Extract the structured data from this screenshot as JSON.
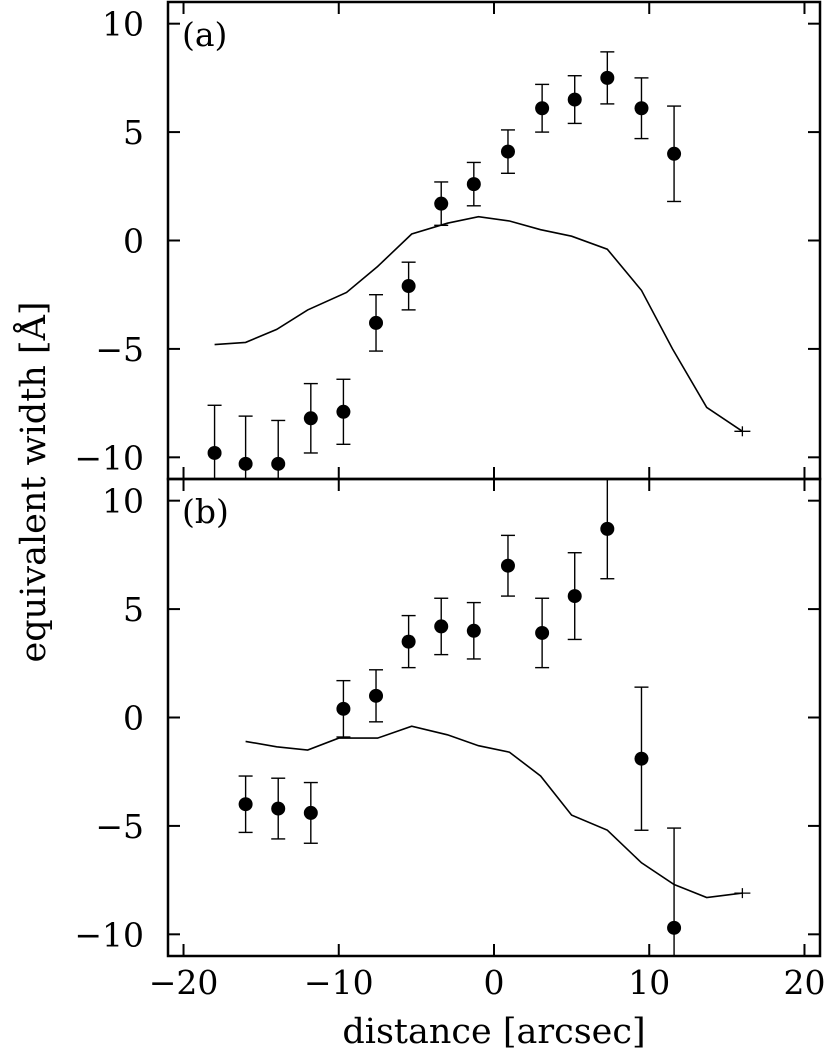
{
  "chart_data": {
    "type": "scatter",
    "xlabel": "distance [arcsec]",
    "ylabel": "equivalent width [Å]",
    "xlim": [
      -21,
      21
    ],
    "x_ticks": [
      -20,
      -10,
      0,
      10,
      20
    ],
    "x_tick_labels": [
      "−20",
      "−10",
      "0",
      "10",
      "20"
    ],
    "panels": [
      {
        "label": "(a)",
        "ylim": [
          -11,
          11
        ],
        "y_ticks": [
          -10,
          -5,
          0,
          5,
          10
        ],
        "y_tick_labels": [
          "−10",
          "−5",
          "0",
          "5",
          "10"
        ],
        "points": [
          {
            "x": -18.0,
            "y": -9.8,
            "err": 2.2
          },
          {
            "x": -16.0,
            "y": -10.3,
            "err": 2.2
          },
          {
            "x": -13.9,
            "y": -10.3,
            "err": 2.0
          },
          {
            "x": -11.8,
            "y": -8.2,
            "err": 1.6
          },
          {
            "x": -9.7,
            "y": -7.9,
            "err": 1.5
          },
          {
            "x": -7.6,
            "y": -3.8,
            "err": 1.3
          },
          {
            "x": -5.5,
            "y": -2.1,
            "err": 1.1
          },
          {
            "x": -3.4,
            "y": 1.7,
            "err": 1.0
          },
          {
            "x": -1.3,
            "y": 2.6,
            "err": 1.0
          },
          {
            "x": 0.9,
            "y": 4.1,
            "err": 1.0
          },
          {
            "x": 3.1,
            "y": 6.1,
            "err": 1.1
          },
          {
            "x": 5.2,
            "y": 6.5,
            "err": 1.1
          },
          {
            "x": 7.3,
            "y": 7.5,
            "err": 1.2
          },
          {
            "x": 9.5,
            "y": 6.1,
            "err": 1.4
          },
          {
            "x": 11.6,
            "y": 4.0,
            "err": 2.2
          }
        ],
        "model_line": {
          "x": [
            -18.0,
            -16.0,
            -14.0,
            -12.0,
            -9.5,
            -7.5,
            -5.3,
            -3.0,
            -1.0,
            1.0,
            3.0,
            5.0,
            7.3,
            9.5,
            11.5,
            13.7,
            16.0
          ],
          "y": [
            -4.8,
            -4.7,
            -4.1,
            -3.2,
            -2.4,
            -1.2,
            0.3,
            0.8,
            1.1,
            0.9,
            0.5,
            0.2,
            -0.4,
            -2.3,
            -5.0,
            -7.7,
            -8.8
          ]
        }
      },
      {
        "label": "(b)",
        "ylim": [
          -11,
          11
        ],
        "y_ticks": [
          -10,
          -5,
          0,
          5,
          10
        ],
        "y_tick_labels": [
          "−10",
          "−5",
          "0",
          "5",
          "10"
        ],
        "points": [
          {
            "x": -16.0,
            "y": -4.0,
            "err": 1.3
          },
          {
            "x": -13.9,
            "y": -4.2,
            "err": 1.4
          },
          {
            "x": -11.8,
            "y": -4.4,
            "err": 1.4
          },
          {
            "x": -9.7,
            "y": 0.4,
            "err": 1.3
          },
          {
            "x": -7.6,
            "y": 1.0,
            "err": 1.2
          },
          {
            "x": -5.5,
            "y": 3.5,
            "err": 1.2
          },
          {
            "x": -3.4,
            "y": 4.2,
            "err": 1.3
          },
          {
            "x": -1.3,
            "y": 4.0,
            "err": 1.3
          },
          {
            "x": 0.9,
            "y": 7.0,
            "err": 1.4
          },
          {
            "x": 3.1,
            "y": 3.9,
            "err": 1.6
          },
          {
            "x": 5.2,
            "y": 5.6,
            "err": 2.0
          },
          {
            "x": 7.3,
            "y": 8.7,
            "err": 2.3
          },
          {
            "x": 9.5,
            "y": -1.9,
            "err": 3.3
          },
          {
            "x": 11.6,
            "y": -9.7,
            "err": 4.6
          }
        ],
        "model_line": {
          "x": [
            -16.0,
            -14.0,
            -12.0,
            -10.0,
            -7.5,
            -5.3,
            -3.0,
            -1.0,
            1.0,
            3.0,
            5.0,
            7.3,
            9.5,
            11.6,
            13.7,
            16.0
          ],
          "y": [
            -1.1,
            -1.35,
            -1.5,
            -0.95,
            -0.95,
            -0.4,
            -0.8,
            -1.3,
            -1.6,
            -2.7,
            -4.5,
            -5.2,
            -6.7,
            -7.7,
            -8.3,
            -8.1
          ]
        }
      }
    ]
  }
}
